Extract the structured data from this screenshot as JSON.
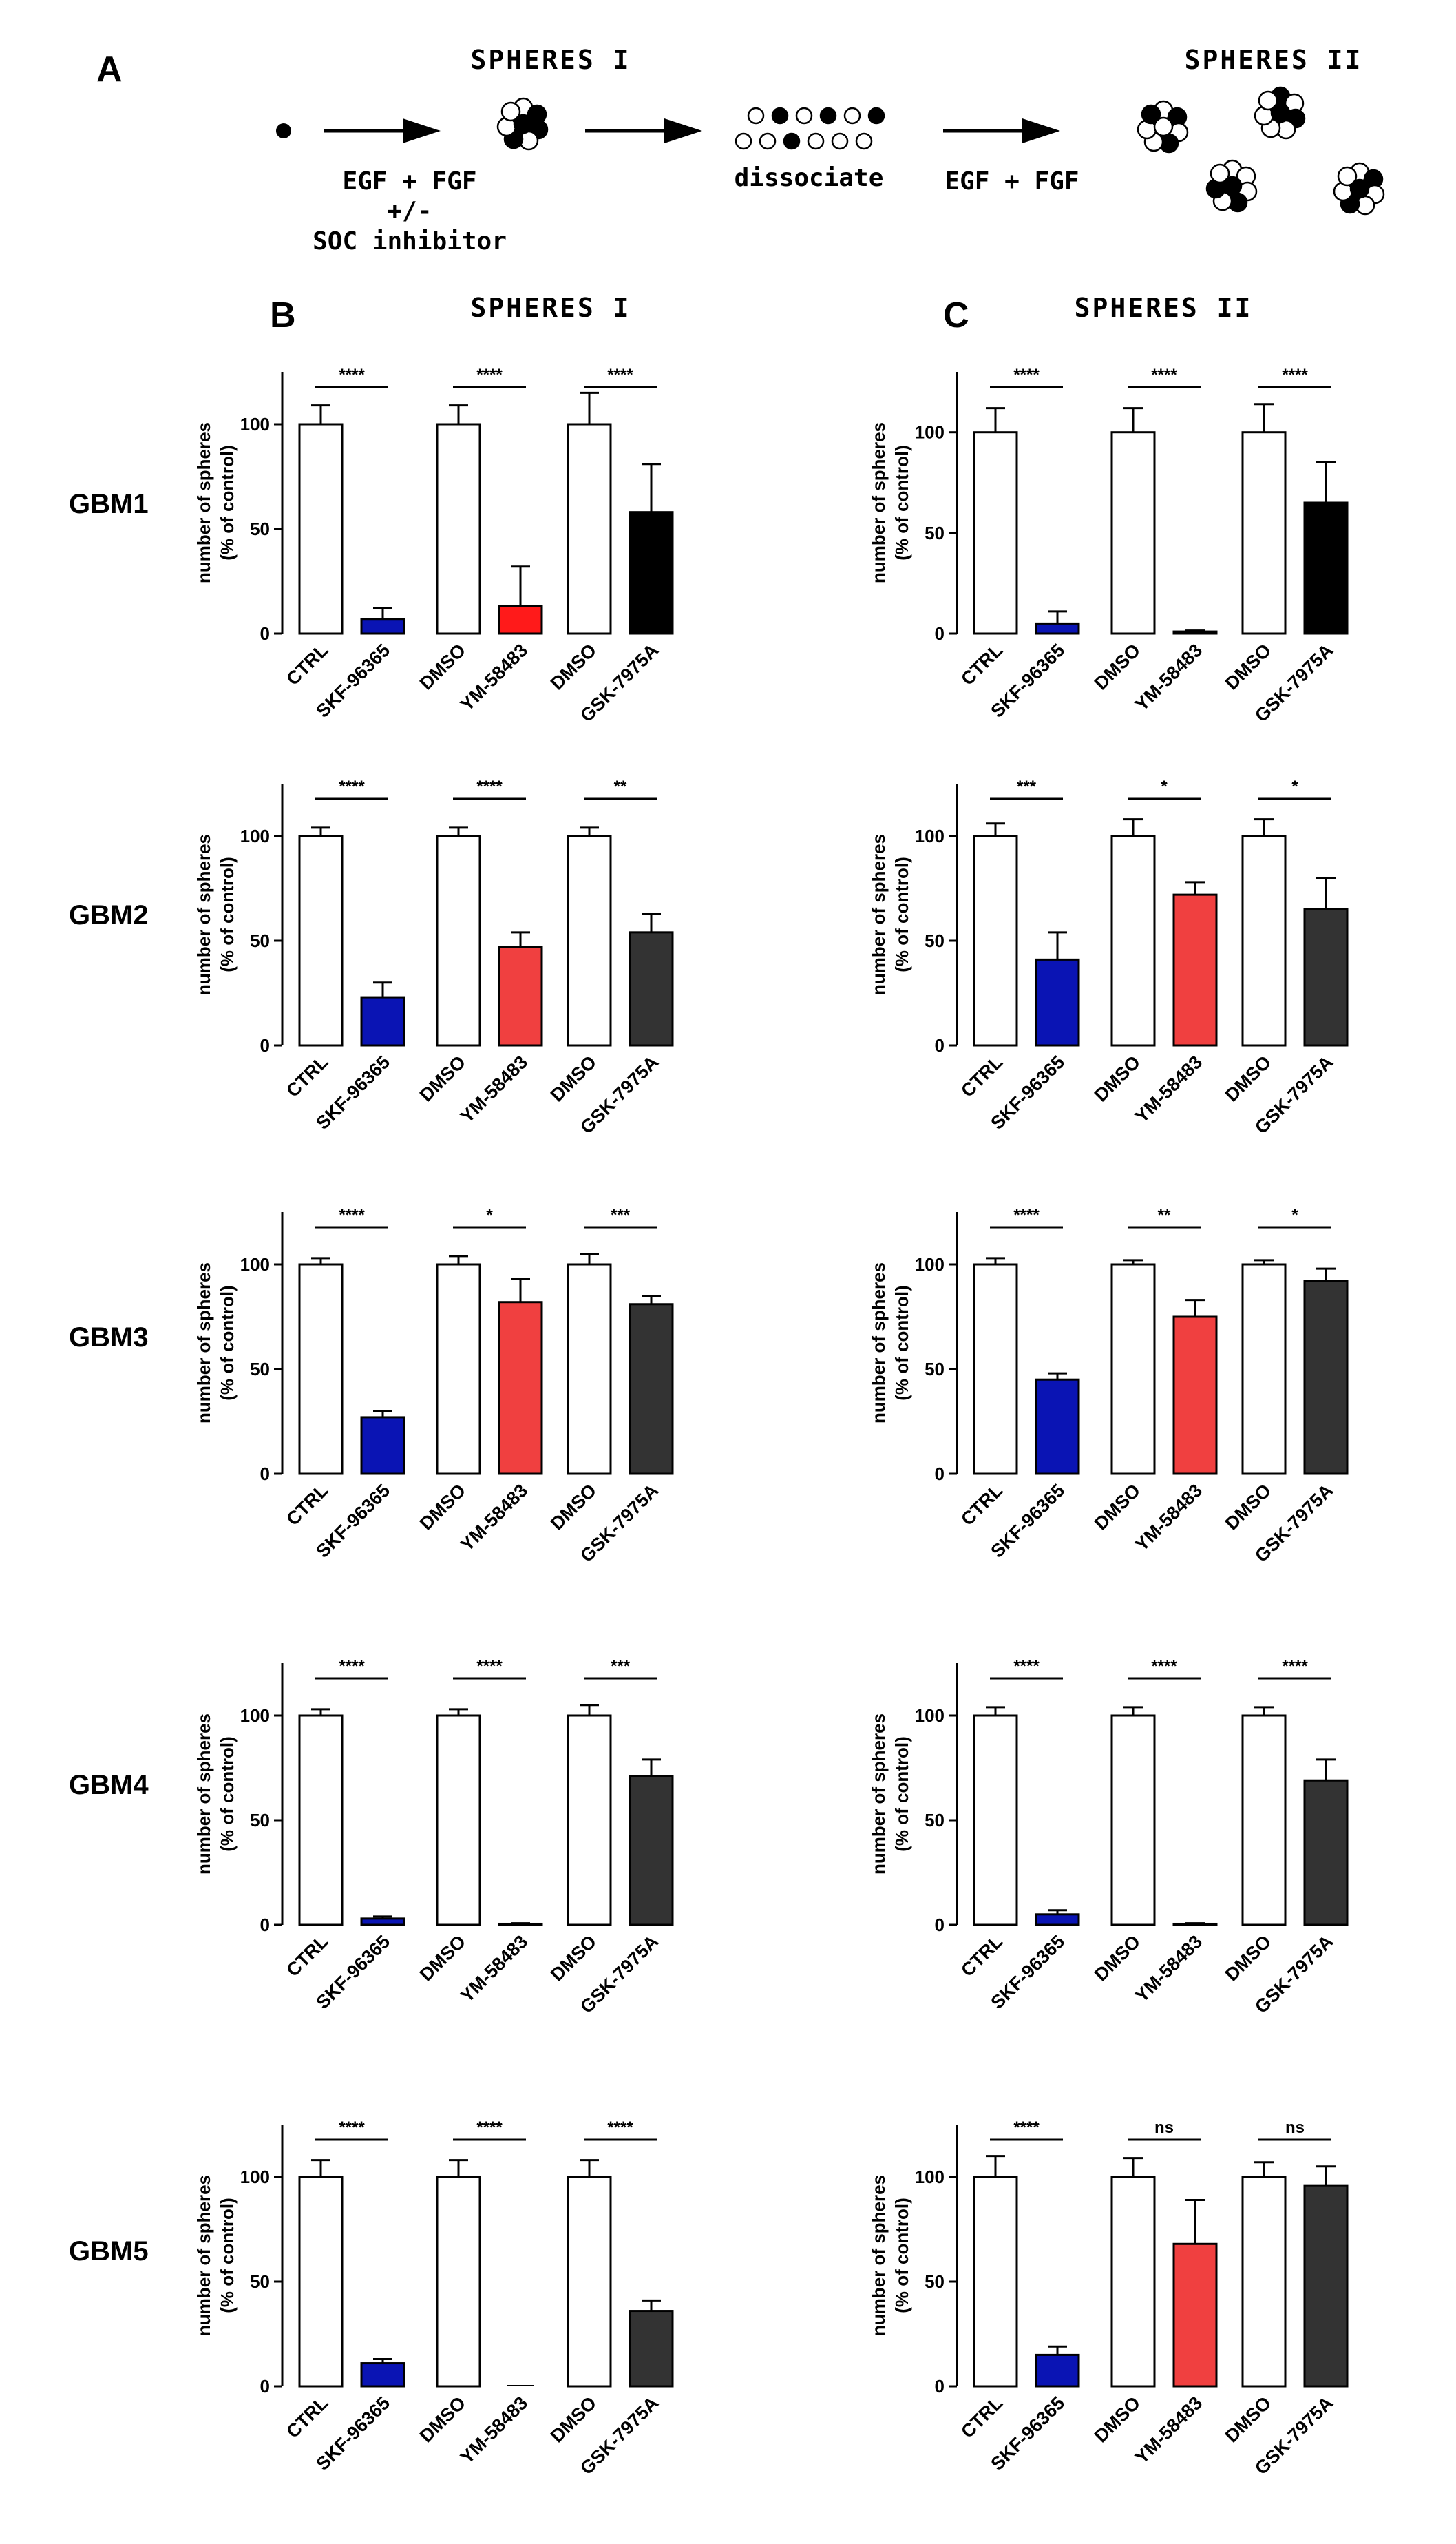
{
  "schematic": {
    "panel_label": "A",
    "spheres_i": "SPHERES I",
    "spheres_ii": "SPHERES II",
    "step1": "EGF + FGF",
    "step1b": "+/-",
    "step1c": "SOC inhibitor",
    "dissociate": "dissociate",
    "step2": "EGF + FGF"
  },
  "panel_b": {
    "letter": "B",
    "title": "SPHERES I"
  },
  "panel_c": {
    "letter": "C",
    "title": "SPHERES II"
  },
  "rows": [
    "GBM1",
    "GBM2",
    "GBM3",
    "GBM4",
    "GBM5"
  ],
  "colors": {
    "ctrl": "#ffffff",
    "skf": "#0a14b4",
    "ym": "#f04040",
    "gsk_black": "#000000",
    "gsk_dark": "#333333",
    "ym_bright": "#ff1a1a"
  },
  "chart_data": [
    {
      "id": "GBM1-I",
      "type": "bar",
      "row": "GBM1",
      "panel": "SPHERES I",
      "ylabel_1": "number of spheres",
      "ylabel_2": "(% of control)",
      "ylim": [
        0,
        125
      ],
      "yticks": [
        "0",
        "50",
        "100"
      ],
      "categories": [
        "CTRL",
        "SKF-96365",
        "DMSO",
        "YM-58483",
        "DMSO",
        "GSK-7975A"
      ],
      "values": [
        100,
        7,
        100,
        13,
        100,
        58
      ],
      "errors": [
        9,
        5,
        9,
        19,
        15,
        23
      ],
      "colors": [
        "ctrl",
        "skf",
        "ctrl",
        "ym_bright",
        "ctrl",
        "gsk_black"
      ],
      "significance": [
        "****",
        "****",
        "****"
      ]
    },
    {
      "id": "GBM1-II",
      "type": "bar",
      "row": "GBM1",
      "panel": "SPHERES II",
      "ylabel_1": "number of spheres",
      "ylabel_2": "(% of control)",
      "ylim": [
        0,
        130
      ],
      "yticks": [
        "0",
        "50",
        "100"
      ],
      "categories": [
        "CTRL",
        "SKF-96365",
        "DMSO",
        "YM-58483",
        "DMSO",
        "GSK-7975A"
      ],
      "values": [
        100,
        5,
        100,
        1,
        100,
        65
      ],
      "errors": [
        12,
        6,
        12,
        0.5,
        14,
        20
      ],
      "colors": [
        "ctrl",
        "skf",
        "ctrl",
        "ym",
        "ctrl",
        "gsk_black"
      ],
      "significance": [
        "****",
        "****",
        "****"
      ]
    },
    {
      "id": "GBM2-I",
      "type": "bar",
      "row": "GBM2",
      "panel": "SPHERES I",
      "ylabel_1": "number of spheres",
      "ylabel_2": "(% of control)",
      "ylim": [
        0,
        125
      ],
      "yticks": [
        "0",
        "50",
        "100"
      ],
      "categories": [
        "CTRL",
        "SKF-96365",
        "DMSO",
        "YM-58483",
        "DMSO",
        "GSK-7975A"
      ],
      "values": [
        100,
        23,
        100,
        47,
        100,
        54
      ],
      "errors": [
        4,
        7,
        4,
        7,
        4,
        9
      ],
      "colors": [
        "ctrl",
        "skf",
        "ctrl",
        "ym",
        "ctrl",
        "gsk_dark"
      ],
      "significance": [
        "****",
        "****",
        "**"
      ]
    },
    {
      "id": "GBM2-II",
      "type": "bar",
      "row": "GBM2",
      "panel": "SPHERES II",
      "ylabel_1": "number of spheres",
      "ylabel_2": "(% of control)",
      "ylim": [
        0,
        125
      ],
      "yticks": [
        "0",
        "50",
        "100"
      ],
      "categories": [
        "CTRL",
        "SKF-96365",
        "DMSO",
        "YM-58483",
        "DMSO",
        "GSK-7975A"
      ],
      "values": [
        100,
        41,
        100,
        72,
        100,
        65
      ],
      "errors": [
        6,
        13,
        8,
        6,
        8,
        15
      ],
      "colors": [
        "ctrl",
        "skf",
        "ctrl",
        "ym",
        "ctrl",
        "gsk_dark"
      ],
      "significance": [
        "***",
        "*",
        "*"
      ]
    },
    {
      "id": "GBM3-I",
      "type": "bar",
      "row": "GBM3",
      "panel": "SPHERES I",
      "ylabel_1": "number of spheres",
      "ylabel_2": "(% of control)",
      "ylim": [
        0,
        125
      ],
      "yticks": [
        "0",
        "50",
        "100"
      ],
      "categories": [
        "CTRL",
        "SKF-96365",
        "DMSO",
        "YM-58483",
        "DMSO",
        "GSK-7975A"
      ],
      "values": [
        100,
        27,
        100,
        82,
        100,
        81
      ],
      "errors": [
        3,
        3,
        4,
        11,
        5,
        4
      ],
      "colors": [
        "ctrl",
        "skf",
        "ctrl",
        "ym",
        "ctrl",
        "gsk_dark"
      ],
      "significance": [
        "****",
        "*",
        "***"
      ]
    },
    {
      "id": "GBM3-II",
      "type": "bar",
      "row": "GBM3",
      "panel": "SPHERES II",
      "ylabel_1": "number of spheres",
      "ylabel_2": "(% of control)",
      "ylim": [
        0,
        125
      ],
      "yticks": [
        "0",
        "50",
        "100"
      ],
      "categories": [
        "CTRL",
        "SKF-96365",
        "DMSO",
        "YM-58483",
        "DMSO",
        "GSK-7975A"
      ],
      "values": [
        100,
        45,
        100,
        75,
        100,
        92
      ],
      "errors": [
        3,
        3,
        2,
        8,
        2,
        6
      ],
      "colors": [
        "ctrl",
        "skf",
        "ctrl",
        "ym",
        "ctrl",
        "gsk_dark"
      ],
      "significance": [
        "****",
        "**",
        "*"
      ]
    },
    {
      "id": "GBM4-I",
      "type": "bar",
      "row": "GBM4",
      "panel": "SPHERES I",
      "ylabel_1": "number of spheres",
      "ylabel_2": "(% of control)",
      "ylim": [
        0,
        125
      ],
      "yticks": [
        "0",
        "50",
        "100"
      ],
      "categories": [
        "CTRL",
        "SKF-96365",
        "DMSO",
        "YM-58483",
        "DMSO",
        "GSK-7975A"
      ],
      "values": [
        100,
        3,
        100,
        0.5,
        100,
        71
      ],
      "errors": [
        3,
        1,
        3,
        0.3,
        5,
        8
      ],
      "colors": [
        "ctrl",
        "skf",
        "ctrl",
        "ym",
        "ctrl",
        "gsk_dark"
      ],
      "significance": [
        "****",
        "****",
        "***"
      ]
    },
    {
      "id": "GBM4-II",
      "type": "bar",
      "row": "GBM4",
      "panel": "SPHERES II",
      "ylabel_1": "number of spheres",
      "ylabel_2": "(% of control)",
      "ylim": [
        0,
        125
      ],
      "yticks": [
        "0",
        "50",
        "100"
      ],
      "categories": [
        "CTRL",
        "SKF-96365",
        "DMSO",
        "YM-58483",
        "DMSO",
        "GSK-7975A"
      ],
      "values": [
        100,
        5,
        100,
        0.5,
        100,
        69
      ],
      "errors": [
        4,
        2,
        4,
        0.3,
        4,
        10
      ],
      "colors": [
        "ctrl",
        "skf",
        "ctrl",
        "ym",
        "ctrl",
        "gsk_dark"
      ],
      "significance": [
        "****",
        "****",
        "****"
      ]
    },
    {
      "id": "GBM5-I",
      "type": "bar",
      "row": "GBM5",
      "panel": "SPHERES I",
      "ylabel_1": "number of spheres",
      "ylabel_2": "(% of control)",
      "ylim": [
        0,
        125
      ],
      "yticks": [
        "0",
        "50",
        "100"
      ],
      "categories": [
        "CTRL",
        "SKF-96365",
        "DMSO",
        "YM-58483",
        "DMSO",
        "GSK-7975A"
      ],
      "values": [
        100,
        11,
        100,
        0,
        100,
        36
      ],
      "errors": [
        8,
        2,
        8,
        0,
        8,
        5
      ],
      "colors": [
        "ctrl",
        "skf",
        "ctrl",
        "ym",
        "ctrl",
        "gsk_dark"
      ],
      "significance": [
        "****",
        "****",
        "****"
      ]
    },
    {
      "id": "GBM5-II",
      "type": "bar",
      "row": "GBM5",
      "panel": "SPHERES II",
      "ylabel_1": "number of spheres",
      "ylabel_2": "(% of control)",
      "ylim": [
        0,
        125
      ],
      "yticks": [
        "0",
        "50",
        "100"
      ],
      "categories": [
        "CTRL",
        "SKF-96365",
        "DMSO",
        "YM-58483",
        "DMSO",
        "GSK-7975A"
      ],
      "values": [
        100,
        15,
        100,
        68,
        100,
        96
      ],
      "errors": [
        10,
        4,
        9,
        21,
        7,
        9
      ],
      "colors": [
        "ctrl",
        "skf",
        "ctrl",
        "ym",
        "ctrl",
        "gsk_dark"
      ],
      "significance": [
        "****",
        "ns",
        "ns"
      ]
    }
  ]
}
